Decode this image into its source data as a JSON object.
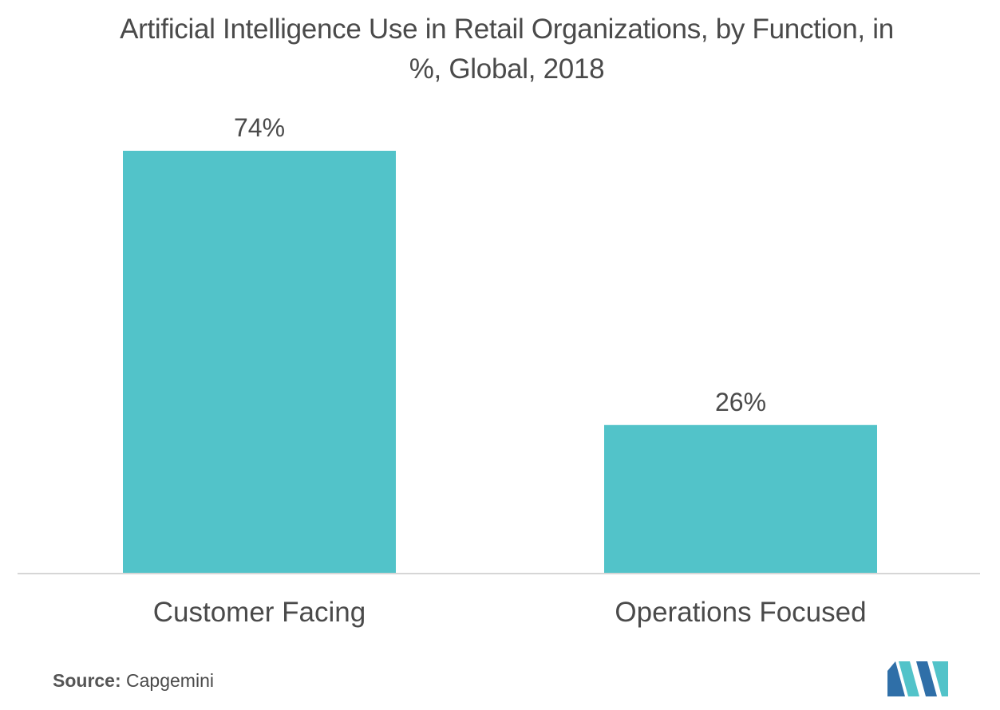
{
  "chart_data": {
    "type": "bar",
    "title": "Artificial Intelligence Use in Retail Organizations, by Function, in %, Global,  2018",
    "categories": [
      "Customer Facing",
      "Operations Focused"
    ],
    "values": [
      74,
      26
    ],
    "value_labels": [
      "74%",
      "26%"
    ],
    "unit": "%",
    "ylim": [
      0,
      80
    ],
    "grid": false,
    "legend": "none",
    "bar_color": "#52c3c9"
  },
  "source": {
    "label": "Source:",
    "text": "Capgemini"
  },
  "logo": {
    "icon": "mordor-intelligence-logo-icon",
    "colors": [
      "#2f6fa8",
      "#52c3c9"
    ]
  }
}
